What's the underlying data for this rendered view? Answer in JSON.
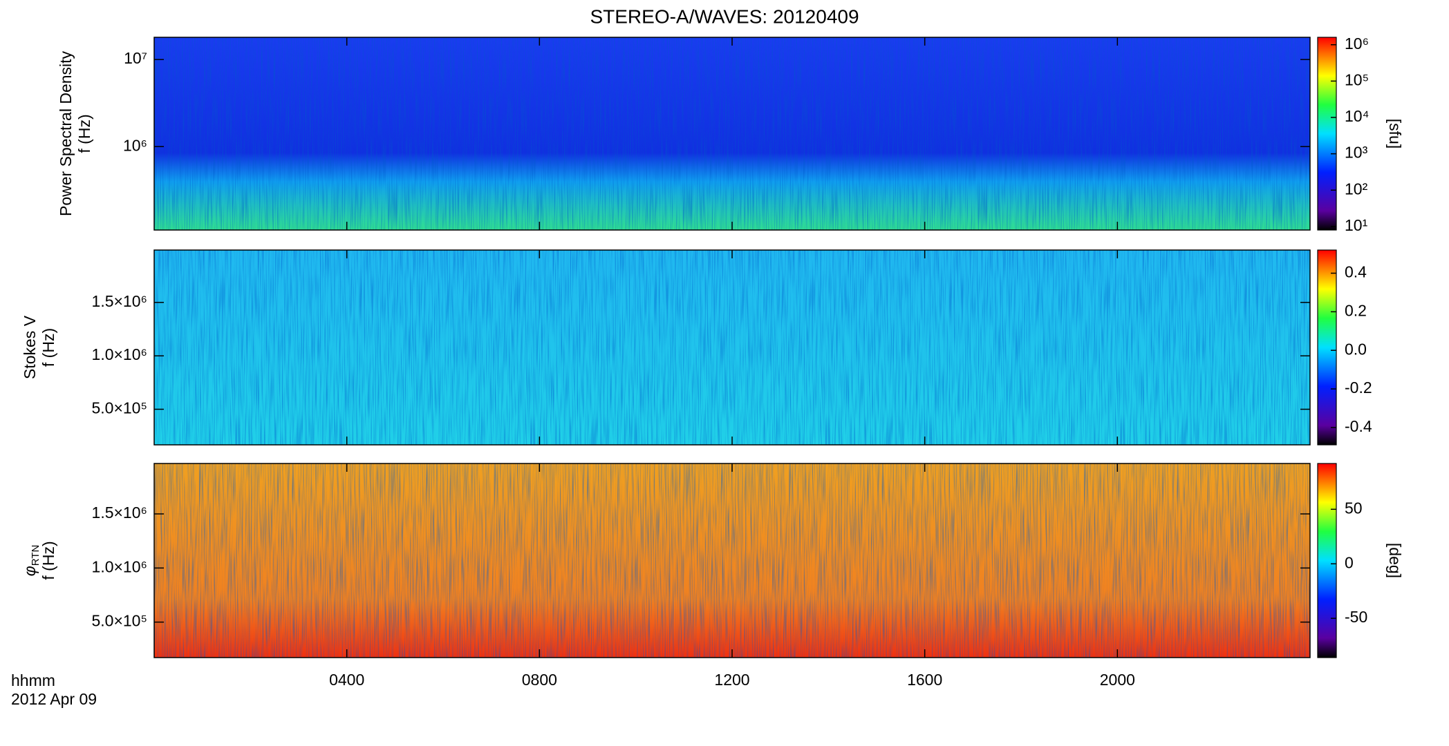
{
  "title": "STEREO-A/WAVES: 20120409",
  "time_label": "hhmm",
  "date_label": "2012 Apr 09",
  "chart_data": [
    {
      "type": "heatmap",
      "ylabel": "Power Spectral Density",
      "ylabel2": "f (Hz)",
      "ylog": true,
      "ylim": [
        110000,
        18000000
      ],
      "yticks": [
        {
          "value": 1000000,
          "label": "10⁶"
        },
        {
          "value": 10000000,
          "label": "10⁷"
        }
      ],
      "xlim": [
        0,
        24
      ],
      "xticks": [
        4,
        8,
        12,
        16,
        20
      ],
      "colorbar": {
        "log": true,
        "lim": [
          8,
          1600000
        ],
        "label": "[sfu]",
        "ticks": [
          {
            "value": 10,
            "label": "10¹"
          },
          {
            "value": 100,
            "label": "10²"
          },
          {
            "value": 1000,
            "label": "10³"
          },
          {
            "value": 10000,
            "label": "10⁴"
          },
          {
            "value": 100000,
            "label": "10⁵"
          },
          {
            "value": 1000000,
            "label": "10⁶"
          }
        ]
      }
    },
    {
      "type": "heatmap",
      "ylabel": "Stokes V",
      "ylabel2": "f (Hz)",
      "ylog": false,
      "ylim": [
        167000,
        1990000
      ],
      "yticks": [
        {
          "value": 500000,
          "label": "5.0×10⁵"
        },
        {
          "value": 1000000,
          "label": "1.0×10⁶"
        },
        {
          "value": 1500000,
          "label": "1.5×10⁶"
        }
      ],
      "xlim": [
        0,
        24
      ],
      "xticks": [
        4,
        8,
        12,
        16,
        20
      ],
      "colorbar": {
        "log": false,
        "lim": [
          -0.49,
          0.52
        ],
        "ticks": [
          -0.4,
          -0.2,
          {
            "value": 0,
            "label": "0.0"
          },
          0.2,
          0.4
        ]
      }
    },
    {
      "type": "heatmap",
      "ylabel": "φ",
      "ylabel_sub": "RTN",
      "ylabel2": "f (Hz)",
      "ylog": false,
      "ylim": [
        172000,
        1966000
      ],
      "yticks": [
        {
          "value": 500000,
          "label": "5.0×10⁵"
        },
        {
          "value": 1000000,
          "label": "1.0×10⁶"
        },
        {
          "value": 1500000,
          "label": "1.5×10⁶"
        }
      ],
      "xlim": [
        0,
        24
      ],
      "xticks": [
        {
          "value": 4,
          "label": "0400"
        },
        {
          "value": 8,
          "label": "0800"
        },
        {
          "value": 12,
          "label": "1200"
        },
        {
          "value": 16,
          "label": "1600"
        },
        {
          "value": 20,
          "label": "2000"
        }
      ],
      "colorbar": {
        "log": false,
        "lim": [
          -86,
          92
        ],
        "label": "[deg]",
        "ticks": [
          -50,
          0,
          50
        ]
      }
    }
  ]
}
